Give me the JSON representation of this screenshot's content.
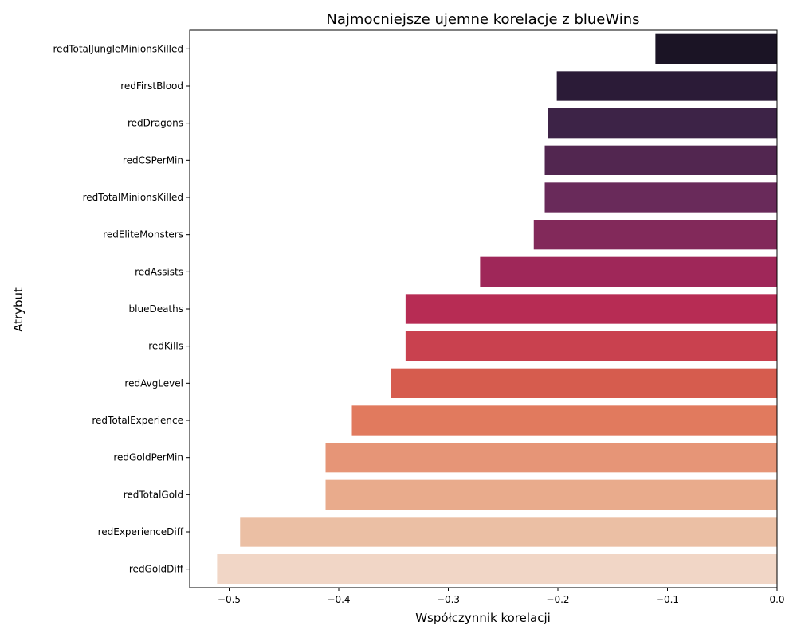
{
  "chart_data": {
    "type": "bar",
    "orientation": "horizontal",
    "title": "Najmocniejsze ujemne korelacje z blueWins",
    "xlabel": "Współczynnik korelacji",
    "ylabel": "Atrybut",
    "xlim": [
      -0.536,
      0.0
    ],
    "xticks": [
      -0.5,
      -0.4,
      -0.3,
      -0.2,
      -0.1,
      0.0
    ],
    "xtick_labels": [
      "−0.5",
      "−0.4",
      "−0.3",
      "−0.2",
      "−0.1",
      "0.0"
    ],
    "grid": false,
    "palette": "rocket",
    "categories": [
      "redTotalJungleMinionsKilled",
      "redFirstBlood",
      "redDragons",
      "redCSPerMin",
      "redTotalMinionsKilled",
      "redEliteMonsters",
      "redAssists",
      "blueDeaths",
      "redKills",
      "redAvgLevel",
      "redTotalExperience",
      "redGoldPerMin",
      "redTotalGold",
      "redExperienceDiff",
      "redGoldDiff"
    ],
    "values": [
      -0.111,
      -0.201,
      -0.209,
      -0.212,
      -0.212,
      -0.222,
      -0.271,
      -0.339,
      -0.339,
      -0.352,
      -0.388,
      -0.412,
      -0.412,
      -0.49,
      -0.511
    ],
    "colors": [
      "#1b1425",
      "#2b1b37",
      "#3d2347",
      "#522650",
      "#692a5a",
      "#82295a",
      "#9f2759",
      "#b72c54",
      "#c9414f",
      "#d65c4e",
      "#e17a5e",
      "#e69577",
      "#e9ab8c",
      "#ebbfa4",
      "#f1d6c6"
    ]
  }
}
